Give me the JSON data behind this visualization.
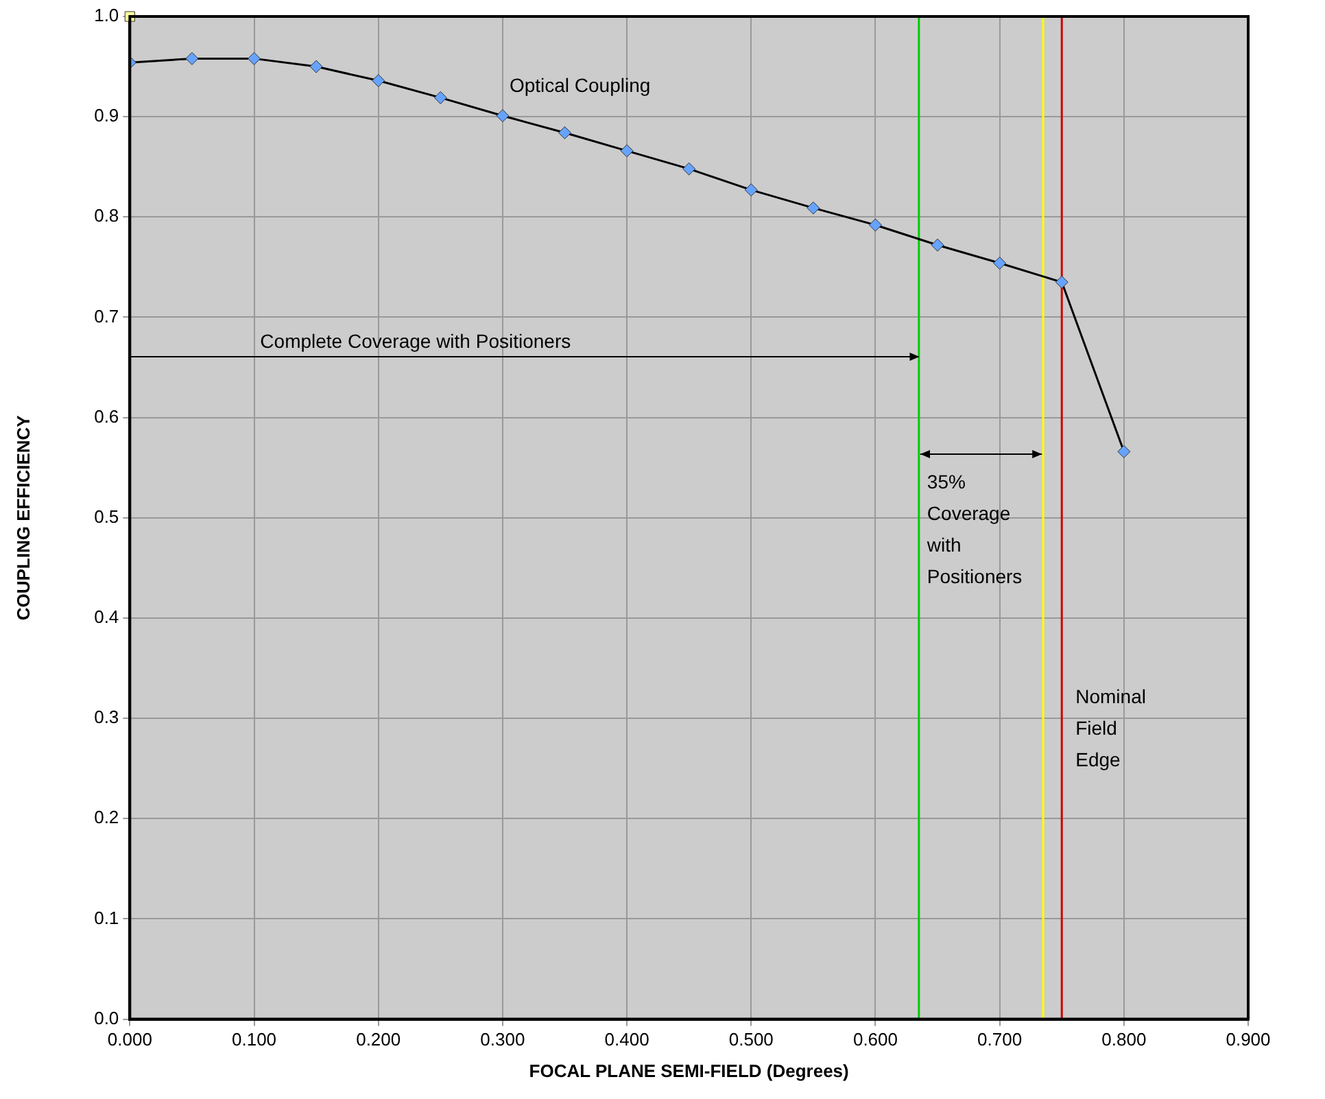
{
  "chart_data": {
    "type": "line",
    "xlabel": "FOCAL PLANE SEMI-FIELD (Degrees)",
    "ylabel": "COUPLING EFFICIENCY",
    "x": [
      0,
      0.05,
      0.1,
      0.15,
      0.2,
      0.25,
      0.3,
      0.35,
      0.4,
      0.45,
      0.5,
      0.55,
      0.6,
      0.65,
      0.7,
      0.75,
      0.8
    ],
    "series": [
      {
        "name": "Optical Coupling",
        "color": "#66a3ff",
        "values": [
          0.954,
          0.958,
          0.958,
          0.95,
          0.936,
          0.919,
          0.901,
          0.884,
          0.866,
          0.848,
          0.827,
          0.809,
          0.792,
          0.772,
          0.754,
          0.735,
          0.566
        ]
      },
      {
        "type": "scatter",
        "color": "#ffff99",
        "marker": "square",
        "x": [
          0
        ],
        "values": [
          1.0
        ]
      }
    ],
    "xlim": [
      0,
      0.9
    ],
    "xticks": [
      {
        "value": 0,
        "label": "0.000"
      },
      {
        "value": 0.1,
        "label": "0.100"
      },
      {
        "value": 0.2,
        "label": "0.200"
      },
      {
        "value": 0.3,
        "label": "0.300"
      },
      {
        "value": 0.4,
        "label": "0.400"
      },
      {
        "value": 0.5,
        "label": "0.500"
      },
      {
        "value": 0.6,
        "label": "0.600"
      },
      {
        "value": 0.7,
        "label": "0.700"
      },
      {
        "value": 0.8,
        "label": "0.800"
      },
      {
        "value": 0.9,
        "label": "0.900"
      }
    ],
    "ylim": [
      0,
      1
    ],
    "yticks": [
      {
        "value": 0,
        "label": "0.0"
      },
      0.1,
      0.2,
      0.3,
      0.4,
      0.5,
      0.6,
      0.7,
      0.8,
      0.9,
      {
        "value": 1,
        "label": "1.0"
      }
    ],
    "ref_lines": [
      {
        "axis": "x",
        "value": 0.635,
        "color": "#00cc00"
      },
      {
        "axis": "x",
        "value": 0.735,
        "color": "#ffff00"
      },
      {
        "axis": "x",
        "value": 0.75,
        "color": "#cc0000",
        "label": "Nominal Field Edge"
      }
    ],
    "annotations": [
      "Complete Coverage with Positioners",
      {
        "text": "35% Coverage with Positioners",
        "x": 0.735,
        "y": 0.563
      }
    ],
    "grid": true,
    "legend": false,
    "marker": "diamond",
    "line_style": "solid"
  }
}
